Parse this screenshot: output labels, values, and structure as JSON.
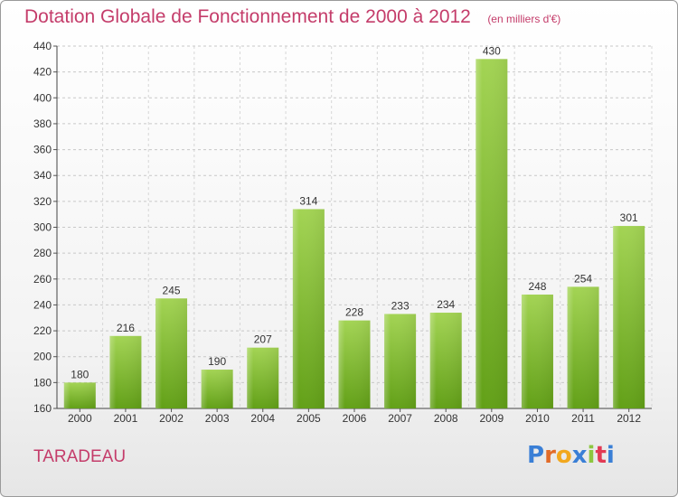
{
  "header": {
    "title": "Dotation Globale de Fonctionnement de 2000 à 2012",
    "subtitle": "(en milliers d'€)"
  },
  "footer": {
    "commune": "TARADEAU",
    "logo_text": "Proxiti"
  },
  "colors": {
    "title": "#c43c6a",
    "bar_top": "#a3d454",
    "bar_bottom": "#62a017"
  },
  "chart_data": {
    "type": "bar",
    "title": "Dotation Globale de Fonctionnement de 2000 à 2012",
    "subtitle": "(en milliers d'€)",
    "xlabel": "",
    "ylabel": "",
    "categories": [
      "2000",
      "2001",
      "2002",
      "2003",
      "2004",
      "2005",
      "2006",
      "2007",
      "2008",
      "2009",
      "2010",
      "2011",
      "2012"
    ],
    "values": [
      180,
      216,
      245,
      190,
      207,
      314,
      228,
      233,
      234,
      430,
      248,
      254,
      301
    ],
    "ylim": [
      160,
      440
    ],
    "yticks": [
      160,
      180,
      200,
      220,
      240,
      260,
      280,
      300,
      320,
      340,
      360,
      380,
      400,
      420,
      440
    ],
    "grid": true,
    "legend": "none",
    "data_labels": true
  }
}
